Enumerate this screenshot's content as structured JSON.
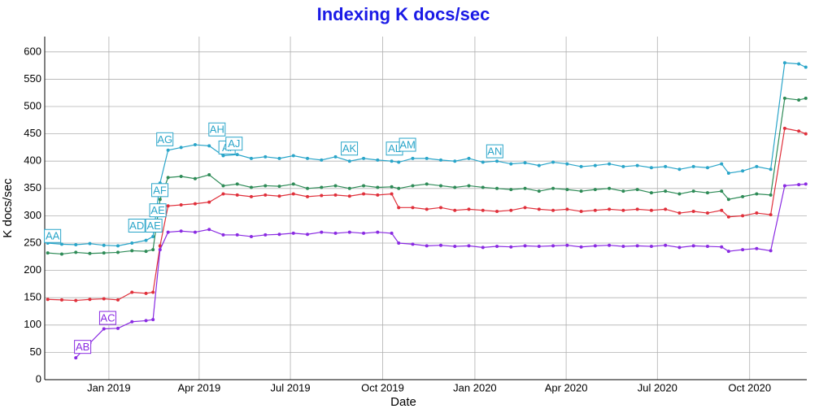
{
  "chart_data": {
    "type": "line",
    "title": "Indexing K docs/sec",
    "xlabel": "Date",
    "ylabel": "K docs/sec",
    "x": [
      "2018-11-01",
      "2018-11-15",
      "2018-11-29",
      "2018-12-13",
      "2018-12-27",
      "2019-01-10",
      "2019-01-24",
      "2019-02-07",
      "2019-02-14",
      "2019-02-21",
      "2019-03-01",
      "2019-03-14",
      "2019-03-28",
      "2019-04-11",
      "2019-04-25",
      "2019-05-09",
      "2019-05-23",
      "2019-06-06",
      "2019-06-20",
      "2019-07-04",
      "2019-07-18",
      "2019-08-01",
      "2019-08-15",
      "2019-08-29",
      "2019-09-12",
      "2019-09-26",
      "2019-10-10",
      "2019-10-17",
      "2019-10-31",
      "2019-11-14",
      "2019-11-28",
      "2019-12-12",
      "2019-12-26",
      "2020-01-09",
      "2020-01-23",
      "2020-02-06",
      "2020-02-20",
      "2020-03-05",
      "2020-03-19",
      "2020-04-02",
      "2020-04-16",
      "2020-04-30",
      "2020-05-14",
      "2020-05-28",
      "2020-06-11",
      "2020-06-25",
      "2020-07-09",
      "2020-07-23",
      "2020-08-06",
      "2020-08-20",
      "2020-09-03",
      "2020-09-10",
      "2020-09-24",
      "2020-10-08",
      "2020-10-22",
      "2020-11-05",
      "2020-11-19",
      "2020-11-26"
    ],
    "series": [
      {
        "color": "#2aa5c9",
        "values": [
          250,
          248,
          247,
          249,
          246,
          245,
          250,
          255,
          262,
          360,
          420,
          425,
          430,
          428,
          410,
          412,
          405,
          408,
          405,
          410,
          405,
          402,
          408,
          400,
          405,
          402,
          400,
          398,
          405,
          405,
          402,
          400,
          405,
          398,
          400,
          395,
          397,
          392,
          398,
          395,
          390,
          392,
          395,
          390,
          392,
          388,
          390,
          385,
          390,
          388,
          395,
          378,
          382,
          390,
          385,
          580,
          578,
          572
        ]
      },
      {
        "color": "#2e8b57",
        "values": [
          232,
          230,
          233,
          231,
          232,
          233,
          236,
          235,
          238,
          330,
          370,
          372,
          368,
          375,
          355,
          358,
          352,
          355,
          354,
          358,
          350,
          352,
          355,
          350,
          355,
          352,
          353,
          350,
          355,
          358,
          355,
          352,
          355,
          352,
          350,
          348,
          350,
          345,
          350,
          348,
          345,
          348,
          350,
          345,
          348,
          342,
          345,
          340,
          345,
          342,
          345,
          330,
          335,
          340,
          338,
          515,
          512,
          515
        ]
      },
      {
        "color": "#e0303b",
        "values": [
          147,
          146,
          145,
          147,
          148,
          146,
          160,
          158,
          160,
          245,
          318,
          320,
          322,
          325,
          340,
          338,
          335,
          338,
          336,
          340,
          335,
          337,
          338,
          336,
          340,
          338,
          340,
          315,
          315,
          312,
          315,
          310,
          312,
          310,
          308,
          310,
          315,
          312,
          310,
          312,
          308,
          310,
          312,
          310,
          312,
          310,
          312,
          305,
          308,
          305,
          310,
          298,
          300,
          305,
          302,
          460,
          455,
          450
        ]
      },
      {
        "color": "#8a2be2",
        "values": [
          null,
          null,
          40,
          67,
          93,
          94,
          106,
          108,
          110,
          238,
          270,
          272,
          270,
          275,
          265,
          265,
          262,
          265,
          266,
          268,
          266,
          270,
          268,
          270,
          268,
          270,
          268,
          250,
          248,
          245,
          246,
          244,
          245,
          242,
          244,
          243,
          245,
          244,
          245,
          246,
          243,
          245,
          246,
          244,
          245,
          244,
          246,
          242,
          245,
          244,
          243,
          235,
          238,
          240,
          236,
          355,
          357,
          358
        ]
      }
    ],
    "annotations": [
      {
        "text": "AA",
        "x": "2018-11-05",
        "y": 263,
        "color": "#2aa5c9"
      },
      {
        "text": "AB",
        "x": "2018-12-05",
        "y": 60,
        "color": "#8a2be2"
      },
      {
        "text": "AC",
        "x": "2018-12-30",
        "y": 113,
        "color": "#8a2be2"
      },
      {
        "text": "AD",
        "x": "2019-01-28",
        "y": 282,
        "color": "#2aa5c9"
      },
      {
        "text": "AE",
        "x": "2019-02-14",
        "y": 282,
        "color": "#2aa5c9"
      },
      {
        "text": "AE",
        "x": "2019-02-18",
        "y": 310,
        "color": "#2aa5c9"
      },
      {
        "text": "AF",
        "x": "2019-02-20",
        "y": 347,
        "color": "#2aa5c9"
      },
      {
        "text": "AG",
        "x": "2019-02-25",
        "y": 440,
        "color": "#2aa5c9"
      },
      {
        "text": "AH",
        "x": "2019-04-18",
        "y": 458,
        "color": "#2aa5c9"
      },
      {
        "text": "AI",
        "x": "2019-04-28",
        "y": 425,
        "color": "#2aa5c9"
      },
      {
        "text": "AJ",
        "x": "2019-05-05",
        "y": 432,
        "color": "#2aa5c9"
      },
      {
        "text": "AK",
        "x": "2019-08-28",
        "y": 423,
        "color": "#2aa5c9"
      },
      {
        "text": "AL",
        "x": "2019-10-12",
        "y": 423,
        "color": "#2aa5c9"
      },
      {
        "text": "AM",
        "x": "2019-10-25",
        "y": 430,
        "color": "#2aa5c9"
      },
      {
        "text": "AN",
        "x": "2020-01-20",
        "y": 418,
        "color": "#2aa5c9"
      }
    ],
    "xlim": [
      "2018-10-29",
      "2020-11-27"
    ],
    "xticks": [
      {
        "value": "2019-01-01",
        "label": "Jan 2019"
      },
      {
        "value": "2019-04-01",
        "label": "Apr 2019"
      },
      {
        "value": "2019-07-01",
        "label": "Jul 2019"
      },
      {
        "value": "2019-10-01",
        "label": "Oct 2019"
      },
      {
        "value": "2020-01-01",
        "label": "Jan 2020"
      },
      {
        "value": "2020-04-01",
        "label": "Apr 2020"
      },
      {
        "value": "2020-07-01",
        "label": "Jul 2020"
      },
      {
        "value": "2020-10-01",
        "label": "Oct 2020"
      }
    ],
    "ylim": [
      0,
      628
    ],
    "yticks": [
      0,
      50,
      100,
      150,
      200,
      250,
      300,
      350,
      400,
      450,
      500,
      550,
      600
    ],
    "grid": true
  }
}
